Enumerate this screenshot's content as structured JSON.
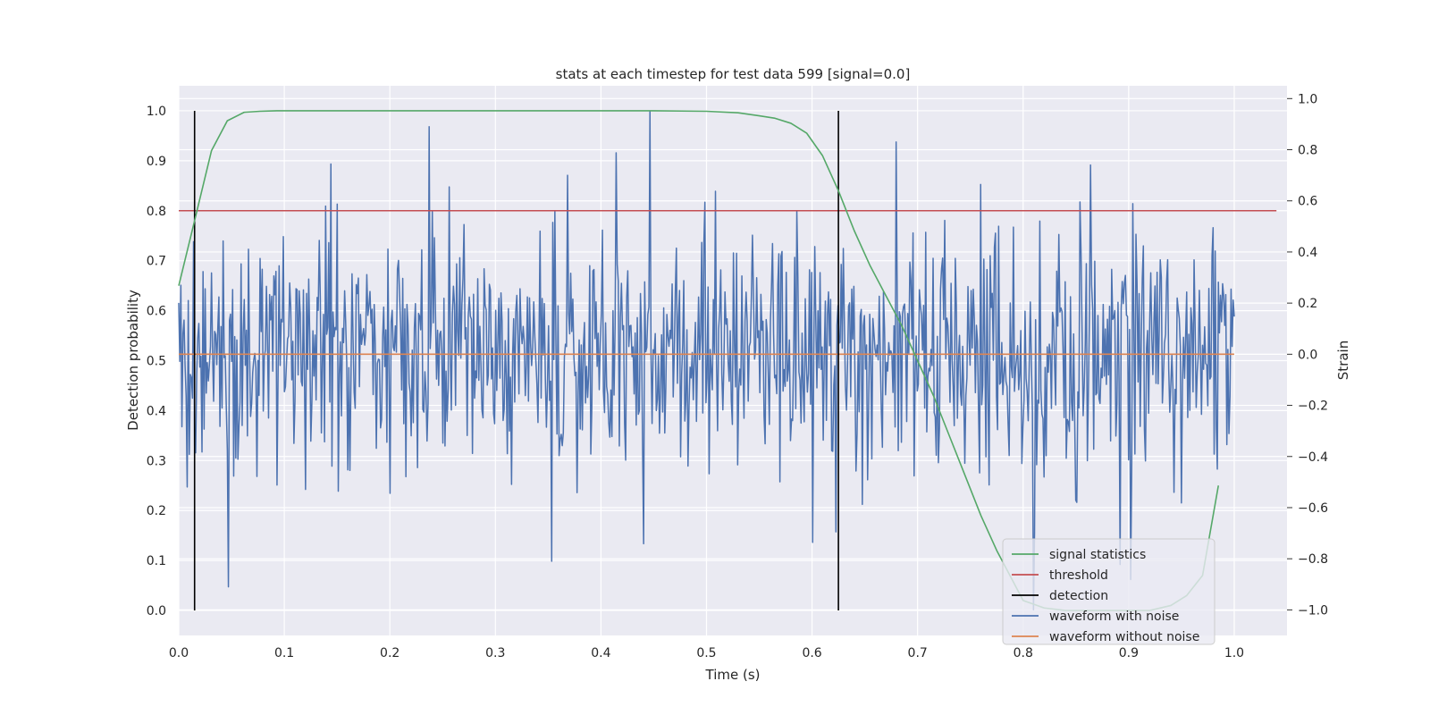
{
  "chart_data": {
    "type": "line",
    "title": "stats at each timestep for test data 599 [signal=0.0]",
    "xlabel": "Time (s)",
    "ylabel": "Detection probability",
    "y2label": "Strain",
    "xlim": [
      0.0,
      1.05
    ],
    "ylim": [
      -0.05,
      1.05
    ],
    "y2lim": [
      -1.1,
      1.05
    ],
    "xticks": [
      "0.0",
      "0.1",
      "0.2",
      "0.3",
      "0.4",
      "0.5",
      "0.6",
      "0.7",
      "0.8",
      "0.9",
      "1.0"
    ],
    "yticks": [
      "0.0",
      "0.1",
      "0.2",
      "0.3",
      "0.4",
      "0.5",
      "0.6",
      "0.7",
      "0.8",
      "0.9",
      "1.0"
    ],
    "y2ticks": [
      "−1.0",
      "−0.8",
      "−0.6",
      "−0.4",
      "−0.2",
      "0.0",
      "0.2",
      "0.4",
      "0.6",
      "0.8",
      "1.0"
    ],
    "grid": true,
    "legend_position": "lower-right",
    "legend": [
      {
        "label": "signal statistics",
        "color": "#55a868"
      },
      {
        "label": "threshold",
        "color": "#c44e52"
      },
      {
        "label": "detection",
        "color": "#000000"
      },
      {
        "label": "waveform with noise",
        "color": "#4c72b0"
      },
      {
        "label": "waveform without noise",
        "color": "#dd8452"
      }
    ],
    "signal_statistics": {
      "axis": "left",
      "x": [
        0.0,
        0.015,
        0.031,
        0.046,
        0.062,
        0.077,
        0.093,
        0.15,
        0.3,
        0.45,
        0.5,
        0.53,
        0.55,
        0.565,
        0.58,
        0.595,
        0.61,
        0.625,
        0.64,
        0.655,
        0.67,
        0.685,
        0.7,
        0.715,
        0.73,
        0.745,
        0.76,
        0.775,
        0.79,
        0.8,
        0.82,
        0.84,
        0.86,
        0.88,
        0.9,
        0.92,
        0.94,
        0.955,
        0.97,
        0.985
      ],
      "y": [
        0.65,
        0.78,
        0.92,
        0.98,
        0.997,
        0.999,
        1.0,
        1.0,
        1.0,
        1.0,
        0.999,
        0.996,
        0.99,
        0.985,
        0.975,
        0.955,
        0.91,
        0.84,
        0.76,
        0.69,
        0.63,
        0.57,
        0.5,
        0.43,
        0.35,
        0.27,
        0.19,
        0.12,
        0.06,
        0.02,
        0.005,
        0.0,
        0.0,
        0.0,
        0.0,
        0.0,
        0.01,
        0.03,
        0.07,
        0.25
      ]
    },
    "threshold": {
      "axis": "left",
      "y": 0.8,
      "x_range": [
        0.0,
        1.04
      ]
    },
    "detection": {
      "axis": "left",
      "x": [
        0.015,
        0.625
      ],
      "y_range": [
        0.0,
        1.0
      ]
    },
    "waveform_without_noise": {
      "axis": "right",
      "x_range": [
        0.0,
        1.0
      ],
      "y": 0.0
    },
    "waveform_with_noise": {
      "axis": "right",
      "x_range": [
        0.0,
        1.0
      ],
      "num_samples": 1000,
      "mean": 0.0,
      "std": 0.24,
      "note_peaks": [
        {
          "x": 0.047,
          "y": -0.91
        },
        {
          "x": 0.237,
          "y": 0.89
        },
        {
          "x": 0.353,
          "y": -0.81
        },
        {
          "x": 0.446,
          "y": 0.95
        },
        {
          "x": 0.68,
          "y": 0.83
        },
        {
          "x": 0.81,
          "y": -1.0
        }
      ]
    }
  }
}
